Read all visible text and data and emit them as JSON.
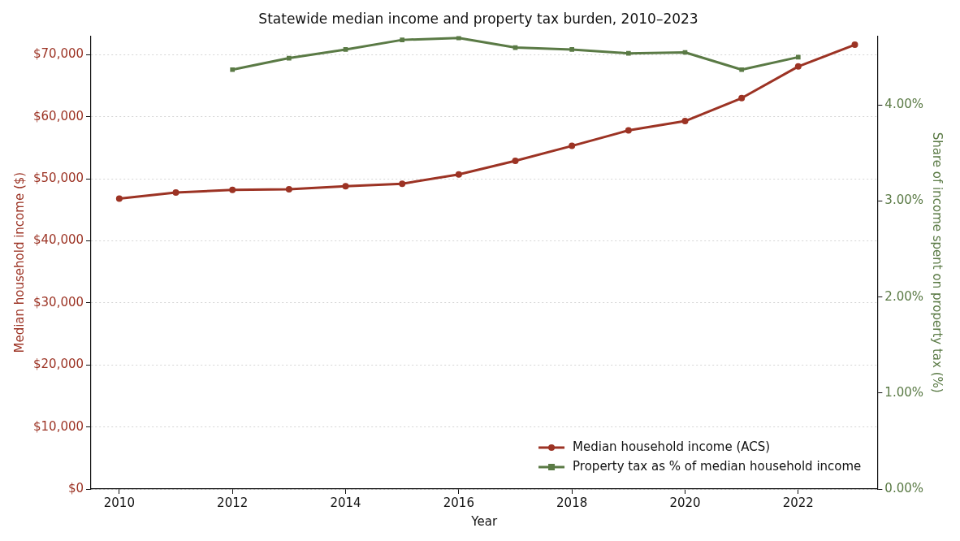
{
  "chart_data": {
    "type": "line",
    "title": "Statewide median income and property tax burden, 2010–2023",
    "xlabel": "Year",
    "ylabel": "Median household income ($)",
    "y2label": "Share of income spent on property tax (%)",
    "x": [
      2010,
      2011,
      2012,
      2013,
      2014,
      2015,
      2016,
      2017,
      2018,
      2019,
      2020,
      2021,
      2022,
      2023
    ],
    "series": [
      {
        "name": "Median household income (ACS)",
        "color": "#9c3324",
        "marker": "circle",
        "values": [
          46800,
          47800,
          48200,
          48300,
          48800,
          49200,
          50700,
          52900,
          55300,
          57800,
          59300,
          63000,
          68100,
          71600
        ]
      },
      {
        "name": "Property tax as % of median household income",
        "color": "#5a7a45",
        "marker": "square",
        "axis": "y2",
        "values": [
          null,
          null,
          4.37,
          4.49,
          4.58,
          4.68,
          4.7,
          4.6,
          4.58,
          4.54,
          4.55,
          4.37,
          4.5,
          null
        ]
      }
    ],
    "xlim": [
      2009.5,
      2023.4
    ],
    "xticks": [
      2010,
      2012,
      2014,
      2016,
      2018,
      2020,
      2022
    ],
    "ylim": [
      0,
      73000
    ],
    "yticks": [
      {
        "value": 0,
        "label": "$0"
      },
      {
        "value": 10000,
        "label": "$10,000"
      },
      {
        "value": 20000,
        "label": "$20,000"
      },
      {
        "value": 30000,
        "label": "$30,000"
      },
      {
        "value": 40000,
        "label": "$40,000"
      },
      {
        "value": 50000,
        "label": "$50,000"
      },
      {
        "value": 60000,
        "label": "$60,000"
      },
      {
        "value": 70000,
        "label": "$70,000"
      }
    ],
    "y2lim": [
      0,
      4.72
    ],
    "y2ticks": [
      {
        "value": 0,
        "label": "0.00%"
      },
      {
        "value": 1,
        "label": "1.00%"
      },
      {
        "value": 2,
        "label": "2.00%"
      },
      {
        "value": 3,
        "label": "3.00%"
      },
      {
        "value": 4,
        "label": "4.00%"
      }
    ],
    "grid": "y",
    "legend": "bottom right",
    "line_style": "solid"
  }
}
